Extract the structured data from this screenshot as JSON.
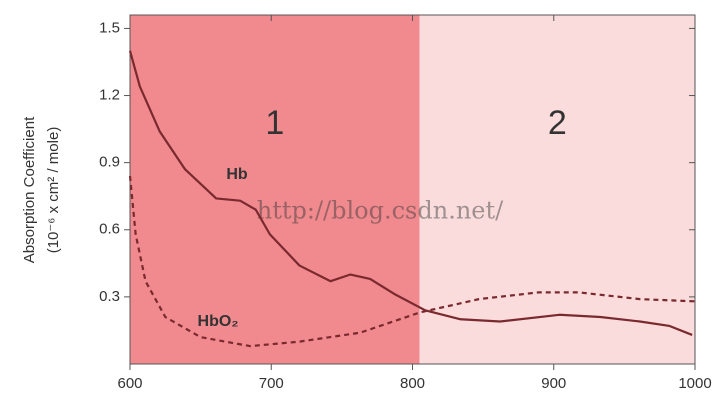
{
  "chart_data": {
    "type": "line",
    "y_label_lines": [
      "Absorption Coefficient",
      "(10⁻⁶ x cm² / mole)"
    ],
    "watermark": "http://blog.csdn.net/",
    "regions": [
      {
        "label": "1",
        "start": 600,
        "end": 805,
        "color": "#f08a8e"
      },
      {
        "label": "2",
        "start": 805,
        "end": 1000,
        "color": "#fadcdd"
      }
    ],
    "series": [
      {
        "name": "Hb",
        "color": "#7a2a2f",
        "line_style": "solid",
        "x": [
          600,
          607,
          621,
          639,
          661,
          678,
          689,
          699,
          720,
          742,
          756,
          770,
          788,
          809,
          834,
          862,
          904,
          933,
          961,
          982,
          998
        ],
        "values": [
          1.4,
          1.24,
          1.04,
          0.87,
          0.74,
          0.73,
          0.69,
          0.58,
          0.44,
          0.37,
          0.4,
          0.38,
          0.31,
          0.24,
          0.2,
          0.19,
          0.22,
          0.21,
          0.19,
          0.17,
          0.13
        ]
      },
      {
        "name": "HbO₂",
        "color": "#7a2a2f",
        "line_style": "dashed",
        "x": [
          600,
          604,
          611,
          625,
          650,
          685,
          720,
          763,
          805,
          847,
          889,
          918,
          961,
          1000
        ],
        "values": [
          0.84,
          0.58,
          0.37,
          0.21,
          0.12,
          0.08,
          0.1,
          0.14,
          0.23,
          0.29,
          0.32,
          0.32,
          0.29,
          0.28
        ]
      }
    ],
    "xlim": [
      600,
      1000
    ],
    "xticks": [
      600,
      700,
      800,
      900,
      1000
    ],
    "ylim": [
      0,
      1.56
    ],
    "yticks": [
      0.3,
      0.6,
      0.9,
      1.2,
      1.5
    ]
  }
}
